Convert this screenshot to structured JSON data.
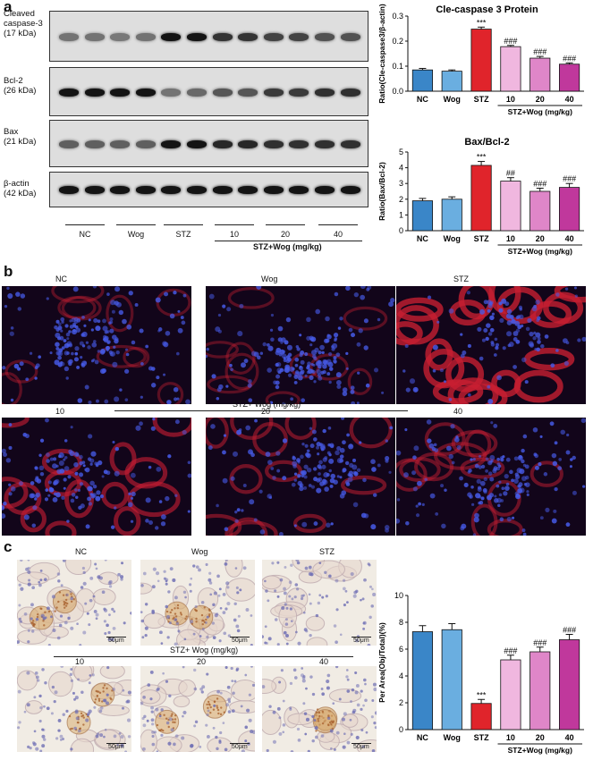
{
  "panel_labels": {
    "a": "a",
    "b": "b",
    "c": "c"
  },
  "blots": [
    {
      "name": "Cleaved caspase-3",
      "lines": [
        "Cleaved",
        "caspase-3",
        "(17 kDa)"
      ],
      "intensity": [
        0.45,
        0.45,
        0.42,
        0.45,
        0.95,
        0.95,
        0.78,
        0.78,
        0.7,
        0.7,
        0.62,
        0.62
      ]
    },
    {
      "name": "Bcl-2",
      "lines": [
        "Bcl-2",
        "(26 kDa)"
      ],
      "intensity": [
        0.95,
        0.95,
        0.95,
        0.95,
        0.45,
        0.5,
        0.6,
        0.6,
        0.75,
        0.75,
        0.8,
        0.8
      ]
    },
    {
      "name": "Bax",
      "lines": [
        "Bax",
        "(21 kDa)"
      ],
      "intensity": [
        0.55,
        0.55,
        0.55,
        0.55,
        0.95,
        0.95,
        0.85,
        0.85,
        0.8,
        0.8,
        0.8,
        0.8
      ]
    },
    {
      "name": "β-actin",
      "lines": [
        "β-actin",
        "(42 kDa)"
      ],
      "intensity": [
        0.95,
        0.95,
        0.95,
        0.95,
        0.95,
        0.95,
        0.95,
        0.95,
        0.95,
        0.95,
        0.95,
        0.95
      ]
    }
  ],
  "blot_lanes": [
    "NC",
    "Wog",
    "STZ",
    "10",
    "20",
    "40"
  ],
  "treatment_label": "STZ+Wog (mg/kg)",
  "fluor": {
    "top_labels": [
      "NC",
      "Wog",
      "STZ"
    ],
    "bottom_labels": [
      "10",
      "20",
      "40"
    ],
    "group_label": "STZ+ Wog (mg/kg)",
    "red_level": [
      0.25,
      0.25,
      0.9,
      0.6,
      0.45,
      0.4
    ],
    "blue_level": [
      0.8,
      0.8,
      0.3,
      0.55,
      0.65,
      0.65
    ]
  },
  "ihc": {
    "top_labels": [
      "NC",
      "Wog",
      "STZ"
    ],
    "bottom_labels": [
      "10",
      "20",
      "40"
    ],
    "group_label": "STZ+ Wog (mg/kg)",
    "scale_label": "50μm",
    "stain_level": [
      0.8,
      0.8,
      0.2,
      0.55,
      0.65,
      0.75
    ]
  },
  "chart_data": [
    {
      "type": "bar",
      "title": "Cle-caspase 3 Protein",
      "ylabel": "Ratio(Cle-caspase3/β-actin)",
      "categories": [
        "NC",
        "Wog",
        "STZ",
        "10",
        "20",
        "40"
      ],
      "values": [
        0.085,
        0.08,
        0.248,
        0.178,
        0.132,
        0.108
      ],
      "errors": [
        0.006,
        0.005,
        0.008,
        0.005,
        0.007,
        0.005
      ],
      "significance": [
        "",
        "",
        "***",
        "###",
        "###",
        "###"
      ],
      "ylim": [
        0,
        0.3
      ],
      "yticks": [
        "0.0",
        "0.1",
        "0.2",
        "0.3"
      ],
      "group_label": "STZ+Wog (mg/kg)",
      "colors": [
        "#3a86c8",
        "#6aaee0",
        "#e0242b",
        "#f0b7df",
        "#df86c8",
        "#c0389c"
      ]
    },
    {
      "type": "bar",
      "title": "Bax/Bcl-2",
      "ylabel": "Ratio(Bax/Bcl-2)",
      "categories": [
        "NC",
        "Wog",
        "STZ",
        "10",
        "20",
        "40"
      ],
      "values": [
        1.9,
        2.0,
        4.15,
        3.15,
        2.5,
        2.75
      ],
      "errors": [
        0.15,
        0.15,
        0.25,
        0.22,
        0.2,
        0.25
      ],
      "significance": [
        "",
        "",
        "***",
        "##",
        "###",
        "###"
      ],
      "ylim": [
        0,
        5
      ],
      "yticks": [
        "0",
        "1",
        "2",
        "3",
        "4",
        "5"
      ],
      "group_label": "STZ+Wog (mg/kg)",
      "colors": [
        "#3a86c8",
        "#6aaee0",
        "#e0242b",
        "#f0b7df",
        "#df86c8",
        "#c0389c"
      ]
    },
    {
      "type": "bar",
      "title": "",
      "ylabel": "Per Area(Obj/Total)(%)",
      "categories": [
        "NC",
        "Wog",
        "STZ",
        "10",
        "20",
        "40"
      ],
      "values": [
        7.3,
        7.45,
        1.95,
        5.2,
        5.8,
        6.7
      ],
      "errors": [
        0.45,
        0.45,
        0.3,
        0.35,
        0.35,
        0.4
      ],
      "significance": [
        "",
        "",
        "***",
        "###",
        "###",
        "###"
      ],
      "ylim": [
        0,
        10
      ],
      "yticks": [
        "0",
        "2",
        "4",
        "6",
        "8",
        "10"
      ],
      "group_label": "STZ+Wog (mg/kg)",
      "colors": [
        "#3a86c8",
        "#6aaee0",
        "#e0242b",
        "#f0b7df",
        "#df86c8",
        "#c0389c"
      ]
    }
  ]
}
